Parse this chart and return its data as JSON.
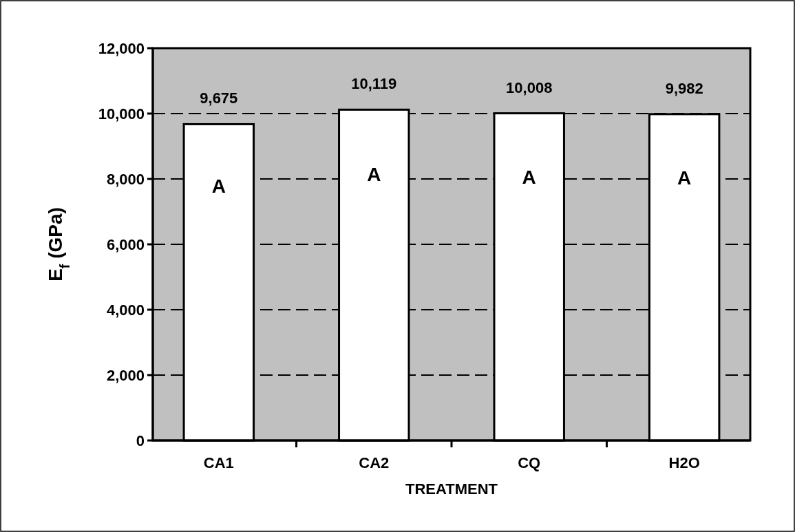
{
  "chart_data": {
    "type": "bar",
    "xlabel": "TREATMENT",
    "ylabel": "E$_{f}$ (GPa)",
    "categories": [
      "CA1",
      "CA2",
      "CQ",
      "H2O"
    ],
    "values": [
      9675,
      10119,
      10008,
      9982
    ],
    "color": "#ffffff",
    "ylim": [
      0,
      12000
    ],
    "yticks": [
      {
        "value": 0,
        "label": "0"
      },
      {
        "value": 2000,
        "label": "2,000"
      },
      {
        "value": 4000,
        "label": "4,000"
      },
      {
        "value": 6000,
        "label": "6,000"
      },
      {
        "value": 8000,
        "label": "8,000"
      },
      {
        "value": 10000,
        "label": "10,000"
      },
      {
        "value": 12000,
        "label": "12,000"
      }
    ],
    "value_labels": [
      "9,675",
      "10,119",
      "10,008",
      "9,982"
    ],
    "grid": "y",
    "line_style": "dashed",
    "annotations": [
      "A",
      "A",
      "A",
      "A"
    ]
  }
}
